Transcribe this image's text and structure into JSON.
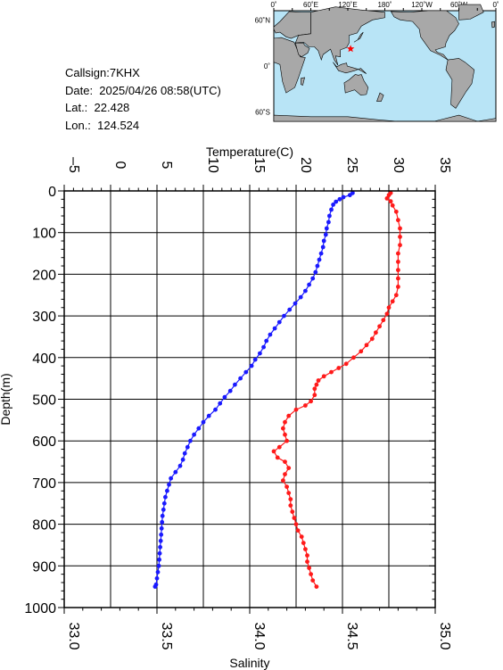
{
  "station": {
    "callsign_line": "Callsign:7KHX",
    "date_line": "Date:  2025/04/26 08:58(UTC)",
    "lat_line": "Lat.:  22.428",
    "lon_line": "Lon.:  124.524"
  },
  "map": {
    "lon_labels": [
      "0˚",
      "60˚E",
      "120˚E",
      "180˚",
      "120˚W",
      "60˚W",
      "0˚"
    ],
    "lat_labels": [
      "60˚N",
      "0˚",
      "60˚S"
    ],
    "ocean_color": "#b8e4f6",
    "land_color": "#a8a8a8",
    "marker_color": "#ff0000",
    "marker_lon": 124.524,
    "marker_lat": 22.428
  },
  "chart_data": {
    "type": "scatter",
    "ylabel": "Depth(m)",
    "ylim": [
      1000,
      0
    ],
    "yticks": [
      "0",
      "100",
      "200",
      "300",
      "400",
      "500",
      "600",
      "700",
      "800",
      "900",
      "1000"
    ],
    "top_axis": {
      "label": "Temperature(C)",
      "range": [
        -5,
        35
      ],
      "ticks": [
        "-5",
        "0",
        "5",
        "10",
        "15",
        "20",
        "25",
        "30",
        "35"
      ]
    },
    "bottom_axis": {
      "label": "Salinity",
      "range": [
        33.0,
        35.0
      ],
      "ticks": [
        "33.0",
        "33.5",
        "34.0",
        "34.5",
        "35.0"
      ]
    },
    "grid": true,
    "series": [
      {
        "axis": "top",
        "color": "#1a1aff",
        "points": [
          [
            26.1,
            5
          ],
          [
            25.8,
            10
          ],
          [
            25.1,
            15
          ],
          [
            24.7,
            20
          ],
          [
            24.3,
            26
          ],
          [
            24.0,
            33
          ],
          [
            23.8,
            45
          ],
          [
            23.6,
            60
          ],
          [
            23.5,
            75
          ],
          [
            23.3,
            90
          ],
          [
            23.2,
            105
          ],
          [
            23.0,
            120
          ],
          [
            22.9,
            135
          ],
          [
            22.7,
            150
          ],
          [
            22.5,
            165
          ],
          [
            22.3,
            180
          ],
          [
            22.1,
            195
          ],
          [
            21.8,
            210
          ],
          [
            21.4,
            225
          ],
          [
            21.0,
            240
          ],
          [
            20.5,
            255
          ],
          [
            19.9,
            270
          ],
          [
            19.3,
            285
          ],
          [
            18.7,
            300
          ],
          [
            18.2,
            315
          ],
          [
            17.7,
            330
          ],
          [
            17.2,
            345
          ],
          [
            16.8,
            360
          ],
          [
            16.5,
            375
          ],
          [
            16.1,
            390
          ],
          [
            15.6,
            405
          ],
          [
            15.2,
            420
          ],
          [
            14.6,
            435
          ],
          [
            14.0,
            450
          ],
          [
            13.4,
            465
          ],
          [
            12.9,
            480
          ],
          [
            12.3,
            495
          ],
          [
            11.8,
            510
          ],
          [
            11.3,
            525
          ],
          [
            10.6,
            540
          ],
          [
            10.0,
            555
          ],
          [
            9.5,
            570
          ],
          [
            9.0,
            585
          ],
          [
            8.6,
            600
          ],
          [
            8.3,
            615
          ],
          [
            8.0,
            630
          ],
          [
            7.8,
            645
          ],
          [
            7.5,
            660
          ],
          [
            7.0,
            675
          ],
          [
            6.5,
            690
          ],
          [
            6.3,
            705
          ],
          [
            6.1,
            720
          ],
          [
            5.9,
            735
          ],
          [
            5.8,
            750
          ],
          [
            5.7,
            765
          ],
          [
            5.6,
            780
          ],
          [
            5.55,
            795
          ],
          [
            5.5,
            810
          ],
          [
            5.45,
            825
          ],
          [
            5.4,
            840
          ],
          [
            5.35,
            855
          ],
          [
            5.3,
            870
          ],
          [
            5.25,
            885
          ],
          [
            5.2,
            900
          ],
          [
            5.1,
            915
          ],
          [
            5.0,
            930
          ],
          [
            4.9,
            945
          ],
          [
            4.8,
            950
          ]
        ]
      },
      {
        "axis": "bottom",
        "color": "#ff1a1a",
        "points": [
          [
            34.76,
            5
          ],
          [
            34.75,
            10
          ],
          [
            34.74,
            18
          ],
          [
            34.76,
            25
          ],
          [
            34.77,
            35
          ],
          [
            34.79,
            50
          ],
          [
            34.8,
            70
          ],
          [
            34.81,
            90
          ],
          [
            34.81,
            110
          ],
          [
            34.81,
            130
          ],
          [
            34.8,
            150
          ],
          [
            34.8,
            170
          ],
          [
            34.8,
            190
          ],
          [
            34.8,
            210
          ],
          [
            34.8,
            230
          ],
          [
            34.79,
            250
          ],
          [
            34.77,
            265
          ],
          [
            34.75,
            280
          ],
          [
            34.74,
            295
          ],
          [
            34.72,
            310
          ],
          [
            34.7,
            325
          ],
          [
            34.68,
            340
          ],
          [
            34.66,
            355
          ],
          [
            34.63,
            370
          ],
          [
            34.6,
            385
          ],
          [
            34.56,
            400
          ],
          [
            34.52,
            415
          ],
          [
            34.48,
            425
          ],
          [
            34.44,
            435
          ],
          [
            34.4,
            445
          ],
          [
            34.37,
            455
          ],
          [
            34.36,
            465
          ],
          [
            34.35,
            475
          ],
          [
            34.35,
            490
          ],
          [
            34.33,
            505
          ],
          [
            34.3,
            515
          ],
          [
            34.25,
            525
          ],
          [
            34.21,
            540
          ],
          [
            34.19,
            555
          ],
          [
            34.18,
            570
          ],
          [
            34.19,
            585
          ],
          [
            34.2,
            600
          ],
          [
            34.16,
            615
          ],
          [
            34.13,
            625
          ],
          [
            34.15,
            640
          ],
          [
            34.19,
            650
          ],
          [
            34.21,
            665
          ],
          [
            34.19,
            680
          ],
          [
            34.18,
            695
          ],
          [
            34.2,
            710
          ],
          [
            34.21,
            725
          ],
          [
            34.22,
            740
          ],
          [
            34.22,
            755
          ],
          [
            34.23,
            770
          ],
          [
            34.24,
            785
          ],
          [
            34.25,
            800
          ],
          [
            34.26,
            815
          ],
          [
            34.28,
            830
          ],
          [
            34.29,
            845
          ],
          [
            34.3,
            860
          ],
          [
            34.31,
            875
          ],
          [
            34.31,
            890
          ],
          [
            34.32,
            905
          ],
          [
            34.33,
            920
          ],
          [
            34.34,
            935
          ],
          [
            34.36,
            950
          ]
        ]
      }
    ]
  }
}
